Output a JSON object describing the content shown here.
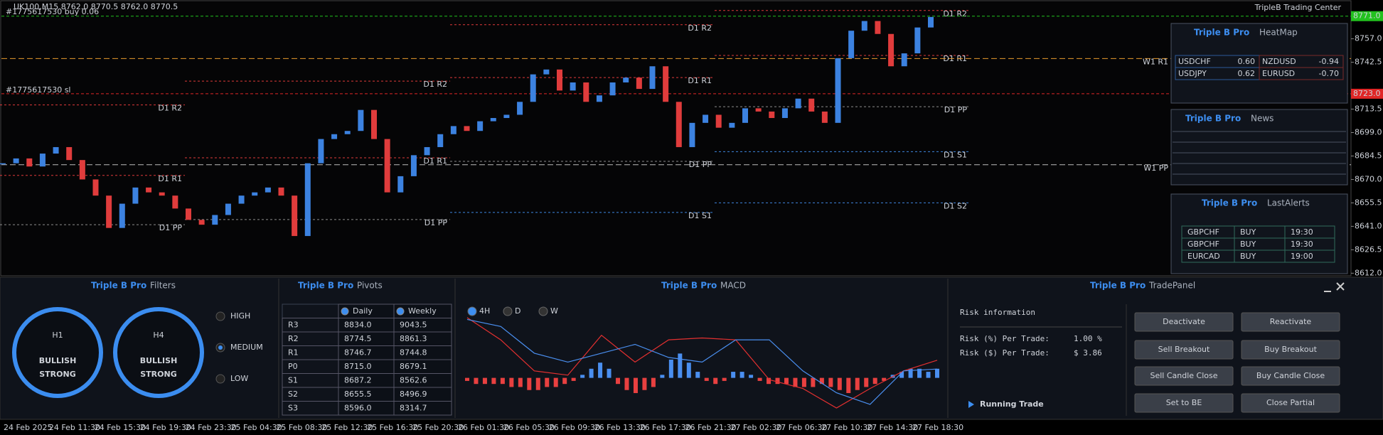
{
  "header": {
    "symbol_info": "UK100,M15  8762.0 8770.5 8762.0 8770.5",
    "brand": "TripleB Trading Center"
  },
  "orders": [
    {
      "label": "#1775617530 buy 0.06",
      "price": 8771.0,
      "price_label": "8771.0"
    },
    {
      "label": "#1775617530 sl",
      "price": 8723.0,
      "price_label": "8723.0"
    }
  ],
  "price_chart": {
    "ylim": [
      8610.4,
      8781.0
    ],
    "yticks": [
      {
        "value": 8757,
        "label": "8757.0"
      },
      8742.5,
      8713.5,
      {
        "value": 8699,
        "label": "8699.0"
      },
      8684.5,
      {
        "value": 8670,
        "label": "8670.0"
      },
      8655.5,
      {
        "value": 8641,
        "label": "8641.0"
      },
      8626.5,
      {
        "value": 8612,
        "label": "8612.0"
      }
    ],
    "x_labels": [
      "24 Feb 2025",
      "24 Feb 11:30",
      "24 Feb 15:30",
      "24 Feb 19:30",
      "24 Feb 23:30",
      "25 Feb 04:30",
      "25 Feb 08:30",
      "25 Feb 12:30",
      "25 Feb 16:30",
      "25 Feb 20:30",
      "26 Feb 01:30",
      "26 Feb 05:30",
      "26 Feb 09:30",
      "26 Feb 13:30",
      "26 Feb 17:30",
      "26 Feb 21:30",
      "27 Feb 02:30",
      "27 Feb 06:30",
      "27 Feb 10:30",
      "27 Feb 14:30",
      "27 Feb 18:30"
    ],
    "closes": [
      8680,
      8683,
      8678,
      8686,
      8690,
      8682,
      8670,
      8660,
      8640,
      8655,
      8665,
      8662,
      8660,
      8652,
      8645,
      8642,
      8648,
      8655,
      8660,
      8662,
      8665,
      8660,
      8635,
      8680,
      8695,
      8698,
      8700,
      8713,
      8695,
      8662,
      8672,
      8685,
      8690,
      8698,
      8703,
      8700,
      8706,
      8708,
      8710,
      8718,
      8735,
      8738,
      8725,
      8730,
      8718,
      8722,
      8730,
      8733,
      8726,
      8740,
      8718,
      8690,
      8705,
      8710,
      8702,
      8705,
      8714,
      8712,
      8708,
      8714,
      8720,
      8712,
      8705,
      8745,
      8762,
      8768,
      8760,
      8740,
      8748,
      8764,
      8770.5
    ],
    "daily_levels": [
      [
        {
          "label": "D1 R2",
          "price": 8716.1
        },
        {
          "label": "D1 R1",
          "price": 8672.5
        },
        {
          "label": "D1 PP",
          "price": 8642.0
        }
      ],
      [
        {
          "label": "D1 R2",
          "price": 8730.8
        },
        {
          "label": "D1 R1",
          "price": 8683.4
        },
        {
          "label": "D1 PP",
          "price": 8645.2
        }
      ],
      [
        {
          "label": "D1 R2",
          "price": 8765.7
        },
        {
          "label": "D1 R1",
          "price": 8733.0
        },
        {
          "label": "D1 PP",
          "price": 8681.2
        },
        {
          "label": "D1 S1",
          "price": 8649.6
        }
      ],
      [
        {
          "label": "D1 R2",
          "price": 8774.5
        },
        {
          "label": "D1 R1",
          "price": 8746.7
        },
        {
          "label": "D1 PP",
          "price": 8715.0
        },
        {
          "label": "D1 S1",
          "price": 8687.2
        },
        {
          "label": "D1 S2",
          "price": 8655.5
        }
      ]
    ],
    "weekly_levels": [
      {
        "label": "W1 R1",
        "price": 8744.8
      },
      {
        "label": "W1 PP",
        "price": 8679.1
      }
    ]
  },
  "heatmap": {
    "brand": "Triple B Pro",
    "title": "HeatMap",
    "rows": [
      [
        {
          "symbol": "USDCHF",
          "value": "0.60"
        },
        {
          "symbol": "NZDUSD",
          "value": "-0.94"
        }
      ],
      [
        {
          "symbol": "USDJPY",
          "value": "0.62"
        },
        {
          "symbol": "EURUSD",
          "value": "-0.70"
        }
      ]
    ]
  },
  "news": {
    "brand": "Triple B Pro",
    "title": "News"
  },
  "alerts": {
    "brand": "Triple B Pro",
    "title": "LastAlerts",
    "rows": [
      [
        "GBPCHF",
        "BUY",
        "19:30"
      ],
      [
        "GBPCHF",
        "BUY",
        "19:30"
      ],
      [
        "EURCAD",
        "BUY",
        "19:00"
      ]
    ]
  },
  "filters": {
    "brand": "Triple B Pro",
    "title": "Filters",
    "gauges": [
      {
        "timeframe": "H1",
        "lines": [
          "BULLISH",
          "STRONG"
        ]
      },
      {
        "timeframe": "H4",
        "lines": [
          "BULLISH",
          "STRONG"
        ]
      }
    ],
    "options": [
      "HIGH",
      "MEDIUM",
      "LOW"
    ]
  },
  "pivots": {
    "brand": "Triple B Pro",
    "title": "Pivots",
    "columns": [
      "Daily",
      "Weekly"
    ],
    "rows": [
      [
        "R3",
        "8834.0",
        "9043.5"
      ],
      [
        "R2",
        "8774.5",
        "8861.3"
      ],
      [
        "R1",
        "8746.7",
        "8744.8"
      ],
      [
        "P0",
        "8715.0",
        "8679.1"
      ],
      [
        "S1",
        "8687.2",
        "8562.6"
      ],
      [
        "S2",
        "8655.5",
        "8496.9"
      ],
      [
        "S3",
        "8596.0",
        "8314.7"
      ]
    ]
  },
  "macd": {
    "brand": "Triple B Pro",
    "title": "MACD",
    "tabs": [
      "4H",
      "D",
      "W"
    ],
    "ylim": [
      -12,
      20
    ],
    "histogram": [
      -1,
      -2,
      -2,
      -2,
      -2,
      -3,
      -3,
      -4,
      -4,
      -3,
      -3,
      -2,
      -1,
      1,
      3,
      5,
      3,
      -2,
      -4,
      -5,
      -4,
      -3,
      1,
      6,
      8,
      5,
      2,
      -1,
      -2,
      -1,
      2,
      2,
      1,
      -1,
      -2,
      -2,
      -2,
      -3,
      -3,
      -3,
      -2,
      -3,
      -4,
      -5,
      -4,
      -3,
      -2,
      -1,
      1,
      2,
      3,
      3,
      2,
      3
    ],
    "signal": [
      19.8,
      12.5,
      2.3,
      0.9,
      14,
      5.2,
      12.5,
      13.1,
      12.5,
      -0.6,
      -3.5,
      -9.9,
      -3.5,
      2.3,
      5.8
    ],
    "main": [
      19.2,
      16.9,
      8.1,
      5.2,
      8.1,
      11,
      6.7,
      5.2,
      12.5,
      12.5,
      2.3,
      -4.9,
      -8.7,
      2.3,
      2.9
    ]
  },
  "trade_panel": {
    "brand": "Triple B Pro",
    "title": "TradePanel",
    "risk_title": "Risk information",
    "risk": [
      {
        "label": "Risk (%) Per Trade:",
        "value": "1.00 %"
      },
      {
        "label": "Risk ($) Per Trade:",
        "value": "$ 3.86"
      }
    ],
    "running": "Running Trade",
    "buttons": [
      "Deactivate",
      "Reactivate",
      "Sell Breakout",
      "Buy Breakout",
      "Sell Candle Close",
      "Buy Candle Close",
      "Set to BE",
      "Close Partial"
    ]
  }
}
